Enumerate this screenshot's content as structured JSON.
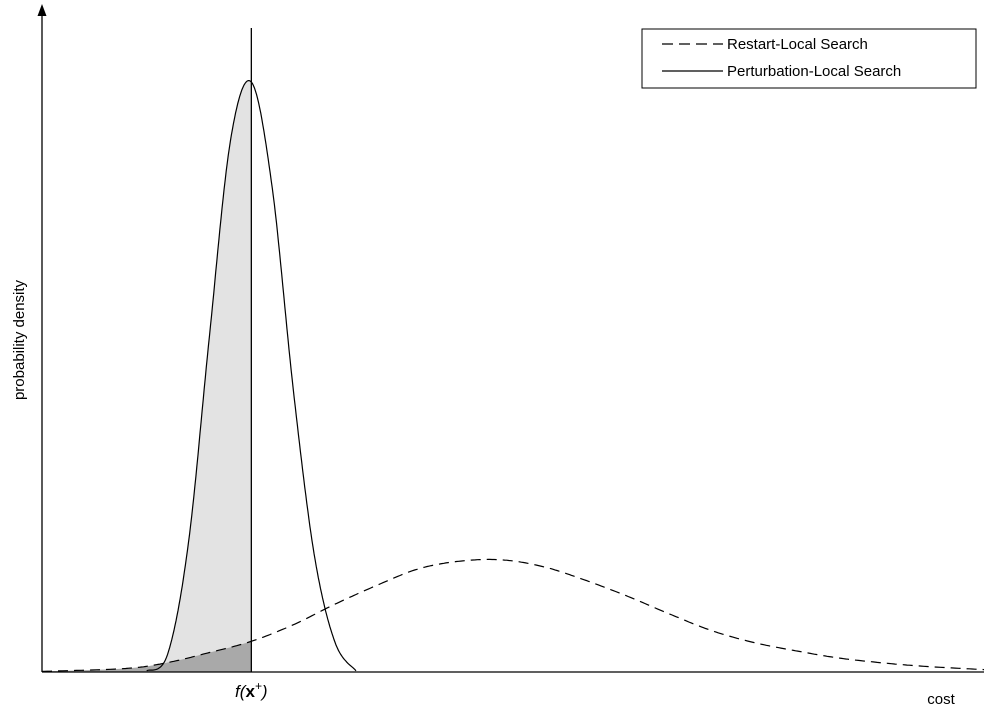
{
  "chart_data": {
    "type": "line",
    "title": "",
    "xlabel": "cost",
    "ylabel": "probability density",
    "x_marker_label": "f(x+)",
    "x_marker_value": 0,
    "xlim": [
      -1,
      3.5
    ],
    "ylim": [
      0,
      1.02
    ],
    "grid": false,
    "legend_position": "top-right",
    "series": [
      {
        "name": "Restart-Local Search",
        "style": "dashed",
        "x": [
          -1.0,
          -0.6,
          -0.4,
          -0.2,
          0.0,
          0.2,
          0.4,
          0.6,
          0.8,
          1.0,
          1.2,
          1.4,
          1.6,
          1.8,
          2.0,
          2.2,
          2.4,
          2.6,
          2.8,
          3.0,
          3.2,
          3.5
        ],
        "y": [
          0.001,
          0.006,
          0.016,
          0.033,
          0.052,
          0.08,
          0.115,
          0.147,
          0.175,
          0.188,
          0.19,
          0.178,
          0.155,
          0.128,
          0.098,
          0.07,
          0.05,
          0.036,
          0.024,
          0.016,
          0.01,
          0.004
        ]
      },
      {
        "name": "Perturbation-Local Search",
        "style": "solid",
        "x": [
          -0.5,
          -0.4,
          -0.3,
          -0.2,
          -0.1,
          0.0,
          0.1,
          0.2,
          0.3,
          0.4,
          0.5
        ],
        "y": [
          0.002,
          0.03,
          0.22,
          0.57,
          0.9,
          1.0,
          0.82,
          0.48,
          0.2,
          0.05,
          0.002
        ]
      }
    ],
    "shaded_regions": [
      {
        "series": "Perturbation-Local Search",
        "from": "xlim_min",
        "to": "x_marker",
        "color": "#e3e3e3"
      },
      {
        "series": "Restart-Local Search",
        "from": "xlim_min",
        "to": "x_marker",
        "color": "#a9a9a9"
      }
    ]
  }
}
